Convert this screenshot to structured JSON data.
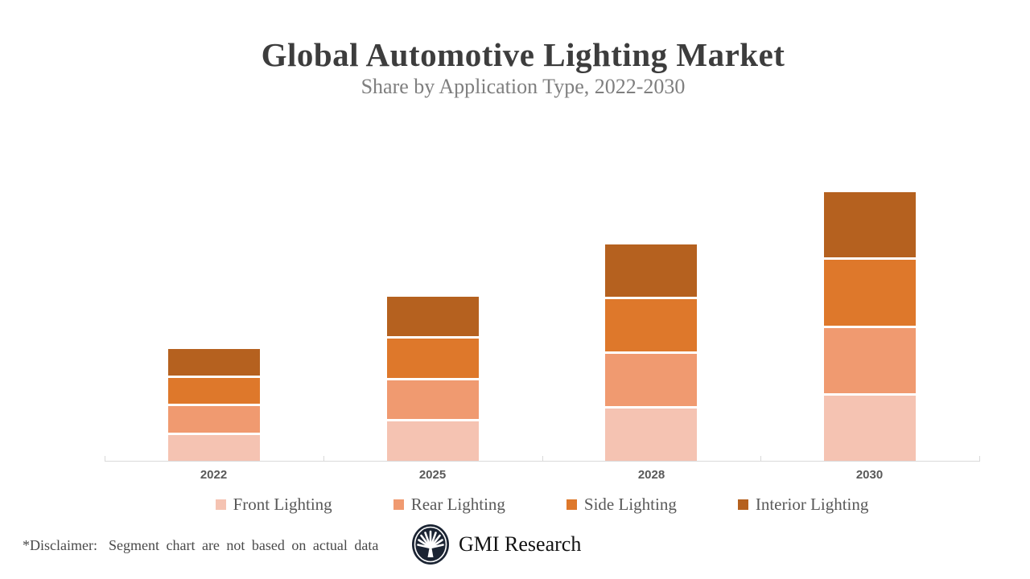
{
  "header": {
    "title": "Global Automotive Lighting Market",
    "subtitle": "Share by Application Type, 2022-2030"
  },
  "chart_data": {
    "type": "bar",
    "stacked": true,
    "categories": [
      "2022",
      "2025",
      "2028",
      "2030"
    ],
    "series": [
      {
        "name": "Front Lighting",
        "color": "#F5C3B2",
        "values": [
          10,
          15,
          20,
          25
        ]
      },
      {
        "name": "Rear Lighting",
        "color": "#F09A70",
        "values": [
          10,
          15,
          20,
          25
        ]
      },
      {
        "name": "Side Lighting",
        "color": "#DE782B",
        "values": [
          10,
          15,
          20,
          25
        ]
      },
      {
        "name": "Interior Lighting",
        "color": "#B5611F",
        "values": [
          10,
          15,
          20,
          25
        ]
      }
    ],
    "title": "Global Automotive Lighting Market",
    "subtitle": "Share by Application Type, 2022-2030",
    "xlabel": "",
    "ylabel": "",
    "ylim": [
      0,
      100
    ],
    "value_axis_visible": false,
    "gridlines": false,
    "legend_position": "bottom",
    "axis_color": "#D9D9D9",
    "x_tick_labels": [
      "2022",
      "2025",
      "2028",
      "2030"
    ]
  },
  "footer": {
    "disclaimer_label": "*Disclaimer:",
    "disclaimer_text": "Segment chart are not based on actual data",
    "brand": "GMI Research"
  },
  "colors": {
    "title": "#3D3D3D",
    "subtitle": "#7F7F7F",
    "x_label": "#595959",
    "legend_text": "#595959",
    "axis": "#D9D9D9",
    "logo_navy": "#1B2433"
  }
}
